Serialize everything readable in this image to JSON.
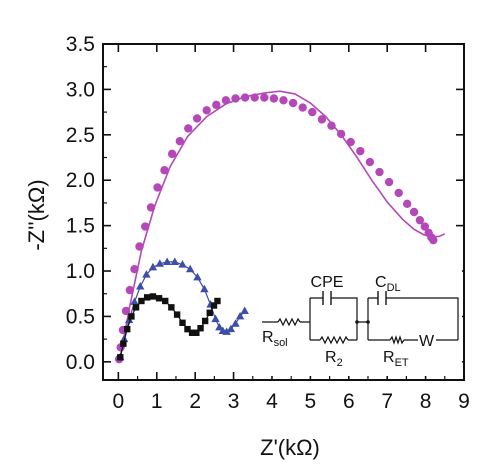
{
  "chart_data": {
    "type": "scatter",
    "xlabel": "Z'(kΩ)",
    "ylabel": "-Z''(kΩ)",
    "xlim": [
      -0.4,
      9
    ],
    "ylim": [
      -0.2,
      3.5
    ],
    "xticks": [
      0,
      1,
      2,
      3,
      4,
      5,
      6,
      7,
      8,
      9
    ],
    "yticks": [
      0.0,
      0.5,
      1.0,
      1.5,
      2.0,
      2.5,
      3.0,
      3.5
    ],
    "ytick_labels": [
      "0.0",
      "0.5",
      "1.0",
      "1.5",
      "2.0",
      "2.5",
      "3.0",
      "3.5"
    ],
    "series": [
      {
        "marker": "circle",
        "color": "#b548b8",
        "x": [
          0.02,
          0.06,
          0.12,
          0.2,
          0.3,
          0.42,
          0.55,
          0.7,
          0.85,
          1.02,
          1.2,
          1.4,
          1.6,
          1.82,
          2.05,
          2.3,
          2.55,
          2.8,
          3.05,
          3.3,
          3.55,
          3.8,
          4.05,
          4.3,
          4.55,
          4.8,
          5.05,
          5.3,
          5.55,
          5.8,
          6.05,
          6.3,
          6.55,
          6.8,
          7.05,
          7.3,
          7.52,
          7.7,
          7.85,
          7.98,
          8.08,
          8.15,
          8.2
        ],
        "y": [
          0.03,
          0.16,
          0.35,
          0.56,
          0.79,
          1.02,
          1.27,
          1.49,
          1.7,
          1.92,
          2.11,
          2.29,
          2.43,
          2.57,
          2.68,
          2.77,
          2.83,
          2.88,
          2.9,
          2.91,
          2.91,
          2.91,
          2.9,
          2.88,
          2.85,
          2.8,
          2.75,
          2.67,
          2.6,
          2.51,
          2.42,
          2.32,
          2.2,
          2.09,
          1.98,
          1.86,
          1.74,
          1.65,
          1.56,
          1.49,
          1.42,
          1.37,
          1.34
        ]
      },
      {
        "marker": "line",
        "color": "#b548b8",
        "x": [
          0.05,
          0.3,
          0.6,
          0.95,
          1.35,
          1.8,
          2.3,
          2.8,
          3.3,
          3.8,
          4.2,
          4.6,
          5.0,
          5.4,
          5.8,
          6.2,
          6.6,
          7.0,
          7.4,
          7.7,
          7.95,
          8.15,
          8.35,
          8.5
        ],
        "y": [
          0.05,
          0.62,
          1.22,
          1.72,
          2.15,
          2.48,
          2.7,
          2.84,
          2.92,
          2.96,
          2.98,
          2.95,
          2.85,
          2.7,
          2.5,
          2.26,
          2.0,
          1.76,
          1.57,
          1.46,
          1.4,
          1.38,
          1.38,
          1.41
        ]
      },
      {
        "marker": "triangle",
        "color": "#3c4fa6",
        "x": [
          0.05,
          0.15,
          0.28,
          0.42,
          0.57,
          0.73,
          0.9,
          1.08,
          1.27,
          1.47,
          1.67,
          1.87,
          2.06,
          2.24,
          2.4,
          2.53,
          2.63,
          2.72,
          2.82,
          2.93,
          3.05,
          3.17,
          3.29
        ],
        "y": [
          0.05,
          0.25,
          0.46,
          0.66,
          0.83,
          0.96,
          1.04,
          1.08,
          1.1,
          1.1,
          1.07,
          1.02,
          0.93,
          0.8,
          0.63,
          0.47,
          0.38,
          0.34,
          0.33,
          0.36,
          0.42,
          0.5,
          0.56
        ]
      },
      {
        "marker": "square",
        "color": "#111111",
        "x": [
          0.05,
          0.13,
          0.23,
          0.34,
          0.46,
          0.6,
          0.75,
          0.9,
          1.06,
          1.22,
          1.38,
          1.53,
          1.67,
          1.8,
          1.92,
          2.03,
          2.14,
          2.26,
          2.38,
          2.49,
          2.58
        ],
        "y": [
          0.05,
          0.2,
          0.36,
          0.5,
          0.6,
          0.67,
          0.71,
          0.72,
          0.7,
          0.67,
          0.6,
          0.52,
          0.43,
          0.36,
          0.32,
          0.32,
          0.37,
          0.45,
          0.54,
          0.62,
          0.67
        ]
      }
    ],
    "circuit_labels": {
      "cpe": "CPE",
      "cdl_main": "C",
      "cdl_sub": "DL",
      "rsol_main": "R",
      "rsol_sub": "sol",
      "r2_main": "R",
      "r2_sub": "2",
      "ret_main": "R",
      "ret_sub": "ET",
      "w": "W"
    }
  }
}
